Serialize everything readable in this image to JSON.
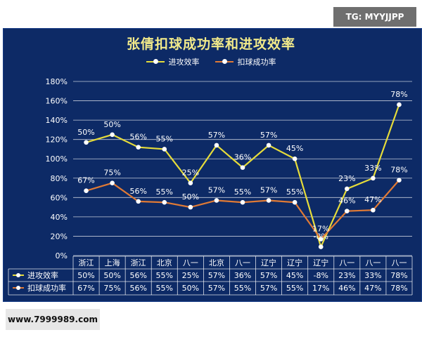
{
  "watermark_top": "TG: MYYJJPP",
  "watermark_bottom": "www.7999989.com",
  "colors": {
    "background": "#0d2a66",
    "series_attack": "#e6dc3a",
    "series_spike": "#e07a35",
    "text": "#ffffff",
    "title": "#f2ea8a"
  },
  "chart_data": {
    "type": "line",
    "title": "张倩扣球成功率和进攻效率",
    "categories": [
      "浙江",
      "上海",
      "浙江",
      "北京",
      "八一",
      "北京",
      "八一",
      "辽宁",
      "辽宁",
      "辽宁",
      "八一",
      "八一",
      "八一"
    ],
    "ylim": [
      0,
      180
    ],
    "yticks": [
      "0%",
      "20%",
      "40%",
      "60%",
      "80%",
      "100%",
      "120%",
      "140%",
      "160%",
      "180%"
    ],
    "grid": true,
    "legend_position": "top",
    "series": [
      {
        "name": "进攻效率",
        "plotted": [
          117,
          125,
          112,
          110,
          75,
          114,
          91,
          114,
          100,
          9,
          69,
          80,
          156
        ],
        "labels": [
          "50%",
          "50%",
          "56%",
          "55%",
          "25%",
          "57%",
          "36%",
          "57%",
          "45%",
          "-8%",
          "23%",
          "33%",
          "78%"
        ]
      },
      {
        "name": "扣球成功率",
        "plotted": [
          67,
          75,
          56,
          55,
          50,
          57,
          55,
          57,
          55,
          17,
          46,
          47,
          78
        ],
        "labels": [
          "67%",
          "75%",
          "56%",
          "55%",
          "50%",
          "57%",
          "55%",
          "57%",
          "55%",
          "17%",
          "46%",
          "47%",
          "78%"
        ]
      }
    ]
  }
}
